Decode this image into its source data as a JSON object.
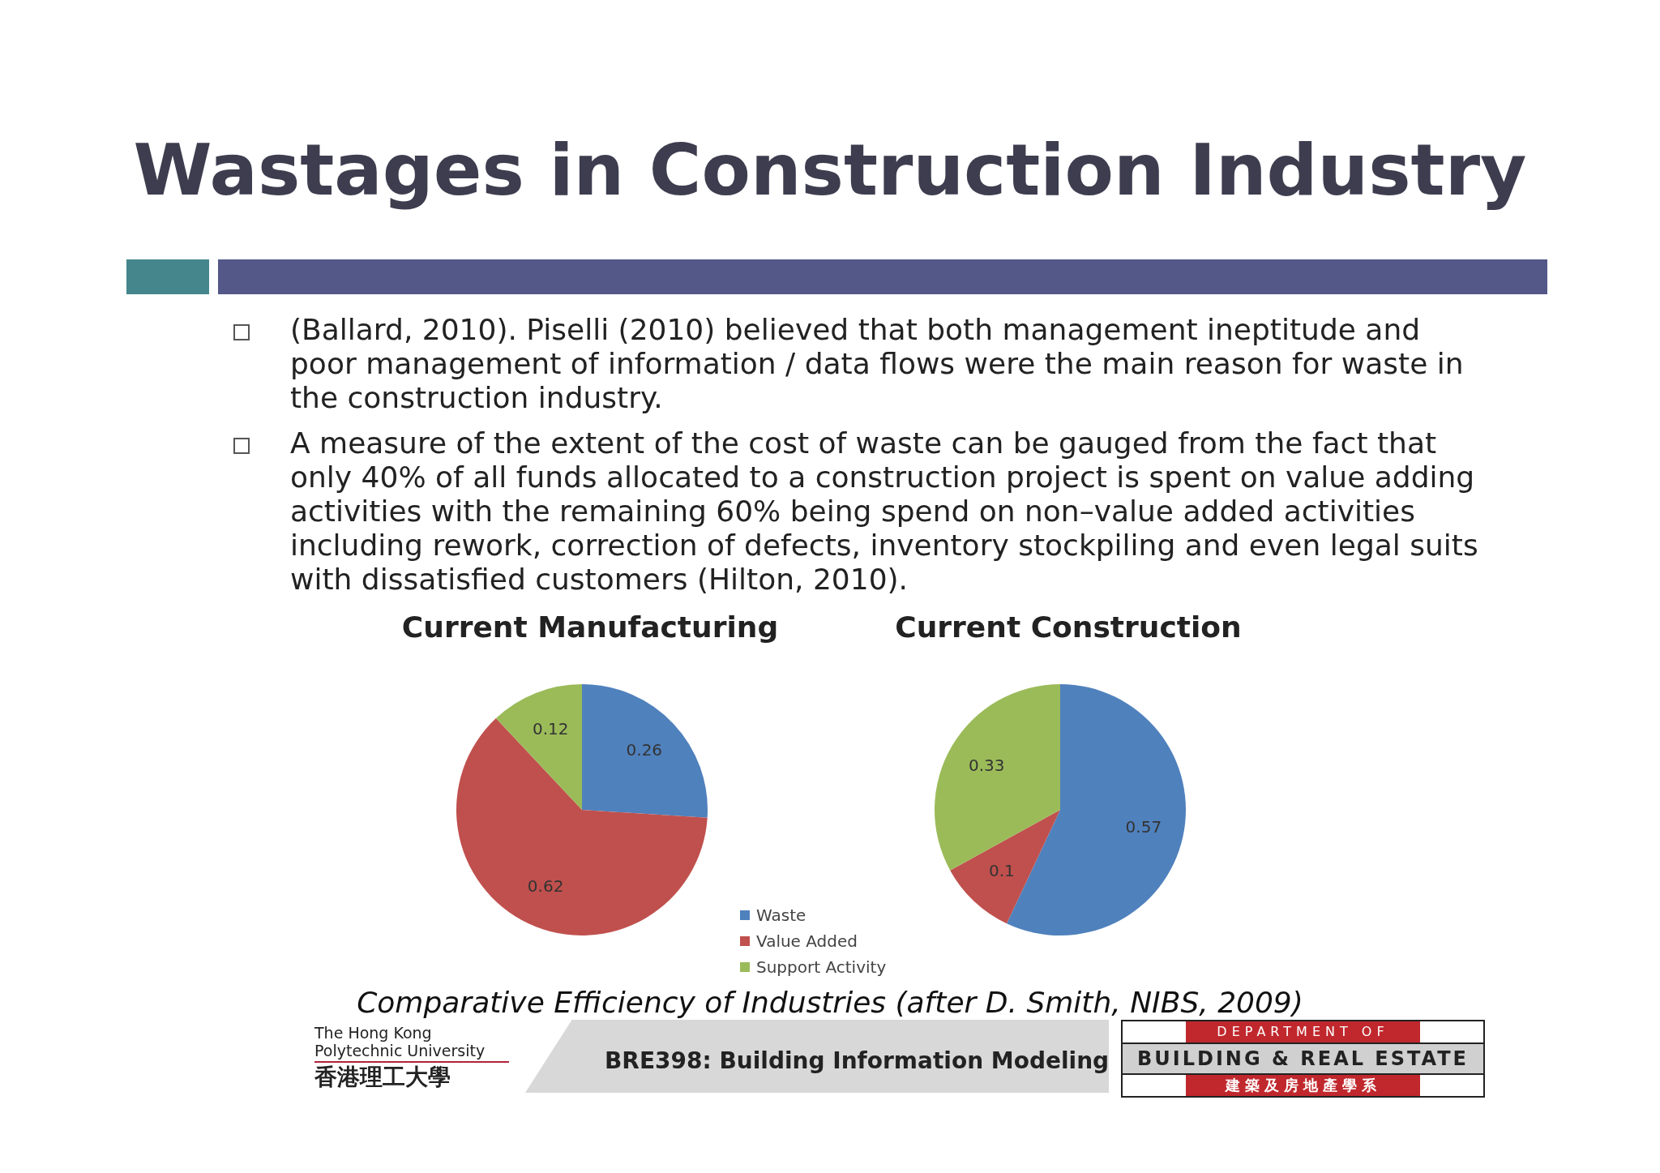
{
  "chart_data": [
    {
      "type": "other",
      "title": "Wastages in Construction Industry",
      "annotations": [
        "(Ballard, 2010). Piselli (2010) believed that both management ineptitude and poor management of information / data flows were the main reason for waste in the construction industry.",
        "A measure of the extent of the cost of waste can be gauged from the fact that only 40% of all funds allocated to a construction project is spent on value adding activities with the remaining 60% being spend on non–value added activities including rework,  correction of defects, inventory stockpiling and even legal suits with dissatisfied customers (Hilton, 2010)."
      ]
    },
    {
      "type": "pie",
      "title": "Current Manufacturing",
      "categories": [
        "Waste",
        "Value Added",
        "Support Activity"
      ],
      "values": [
        0.26,
        0.62,
        0.12
      ],
      "colors": [
        "#4f81bd",
        "#c0504d",
        "#9bbb59"
      ],
      "data_labels": true,
      "legend": "bottom"
    },
    {
      "type": "pie",
      "title": "Current Construction",
      "categories": [
        null,
        null,
        null
      ],
      "values": [
        0.57,
        0.1,
        0.33
      ],
      "colors": [
        "#4f81bd",
        "#c0504d",
        "#9bbb59"
      ],
      "data_labels": true
    },
    {
      "type": "other",
      "annotations": [
        "Comparative Efficiency of Industries (after D. Smith, NIBS, 2009)",
        "The Hong Kong Polytechnic University",
        "香港理工大學",
        "BRE398: Building Information Modeling",
        "DEPARTMENT OF",
        "BUILDING & REAL ESTATE",
        "建築及房地產學系"
      ]
    }
  ]
}
